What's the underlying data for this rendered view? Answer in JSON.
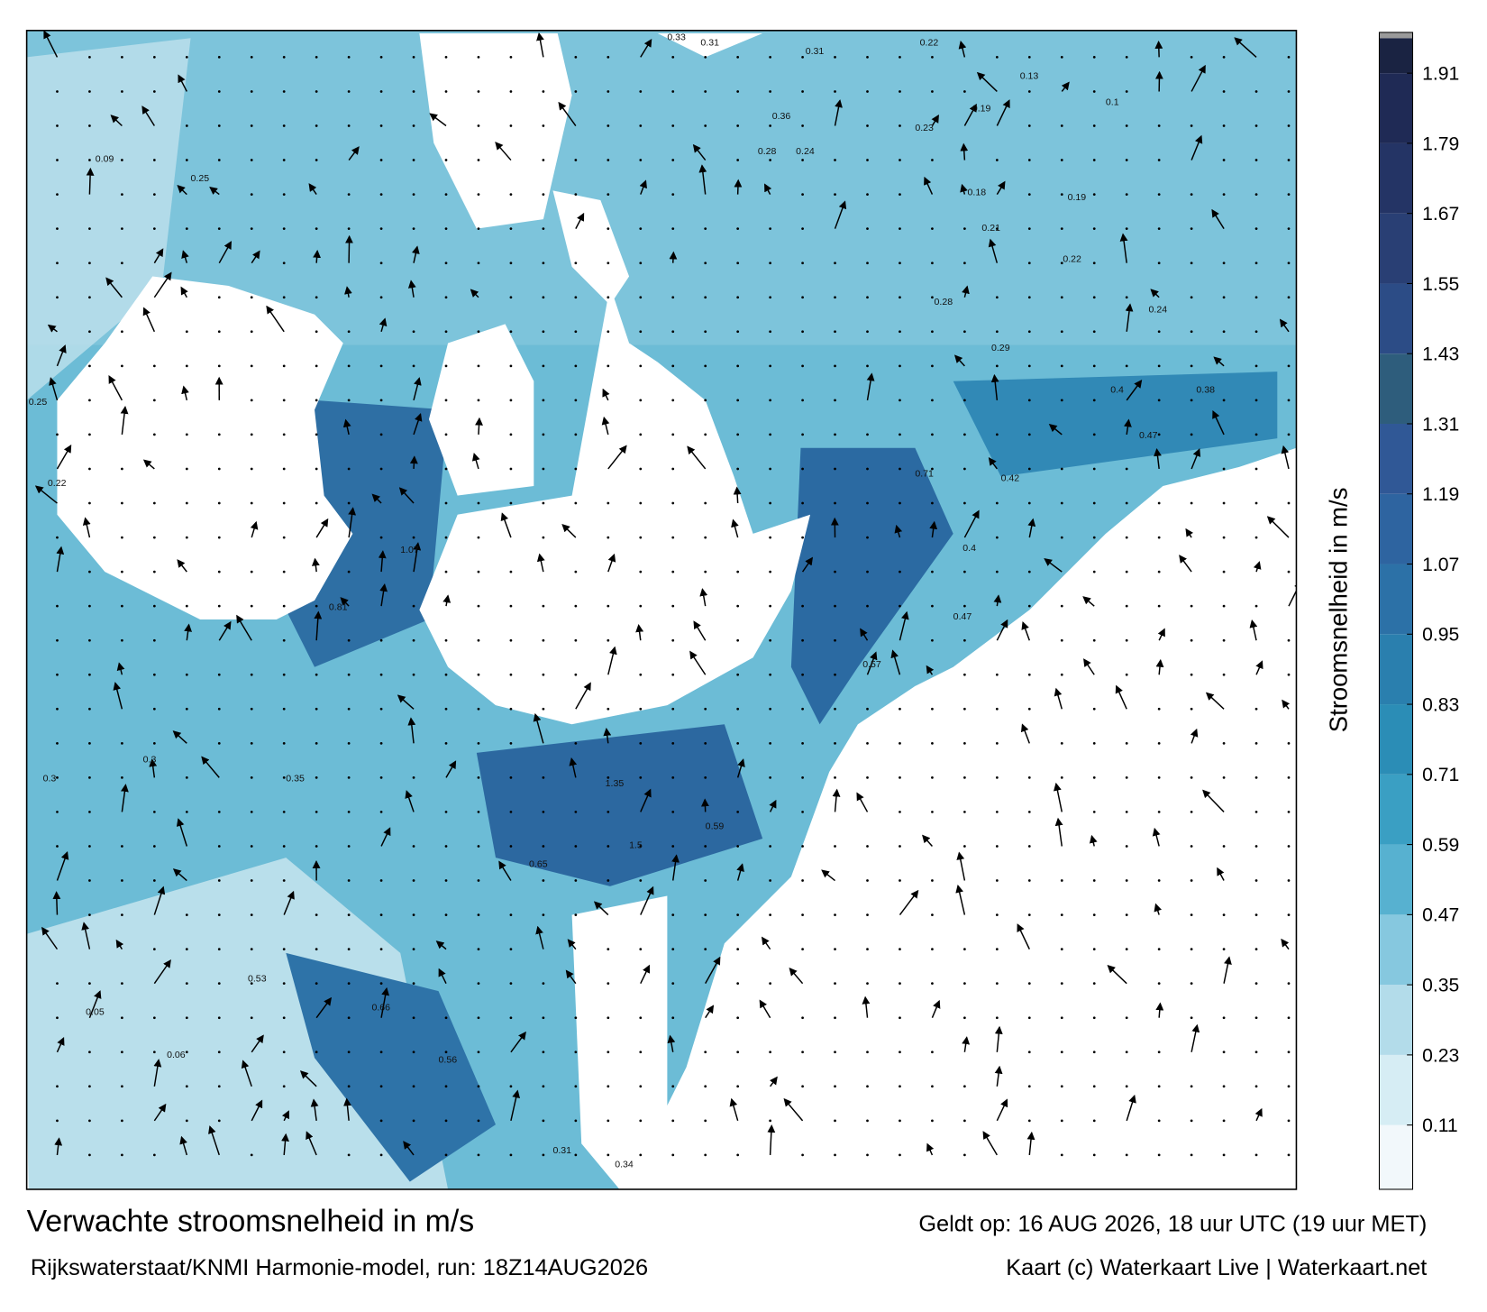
{
  "title": "Verwachte stroomsnelheid in m/s",
  "valid_time": "Geldt op: 16 AUG 2026, 18 uur UTC (19 uur MET)",
  "model_run": "Rijkswaterstaat/KNMI Harmonie-model, run: 18Z14AUG2026",
  "credit": "Kaart (c) Waterkaart Live | Waterkaart.net",
  "colorbar": {
    "label": "Stroomsnelheid in m/s",
    "lim": [
      0,
      1.97
    ],
    "ticks": [
      0.11,
      0.23,
      0.35,
      0.47,
      0.59,
      0.71,
      0.83,
      0.95,
      1.07,
      1.19,
      1.31,
      1.43,
      1.55,
      1.67,
      1.79,
      1.91
    ],
    "colors": [
      "#f2f8fb",
      "#d6edf4",
      "#b3dcea",
      "#86c8df",
      "#57b1d0",
      "#3a9fc3",
      "#2b8db6",
      "#2a7fae",
      "#2c71a7",
      "#2e64a0",
      "#305896",
      "#2e5d7c",
      "#2c4c86",
      "#293f74",
      "#243465",
      "#1f2a55",
      "#1a2342"
    ],
    "cap_color": "#9a9a9a"
  },
  "map_labels": [
    0.33,
    0.31,
    0.31,
    0.22,
    0.13,
    0.1,
    0.36,
    0.28,
    0.24,
    0.23,
    0.19,
    0.18,
    0.19,
    0.21,
    0.22,
    0.28,
    0.24,
    0.29,
    0.4,
    0.38,
    0.47,
    0.71,
    0.42,
    0.4,
    0.47,
    0.57,
    0.81,
    1.07,
    1.35,
    1.5,
    0.65,
    0.59,
    0.35,
    0.53,
    0.66,
    0.56,
    0.31,
    0.34,
    0.05,
    0.06,
    0.09,
    0.25,
    0.25,
    0.22,
    0.3,
    0.3
  ]
}
